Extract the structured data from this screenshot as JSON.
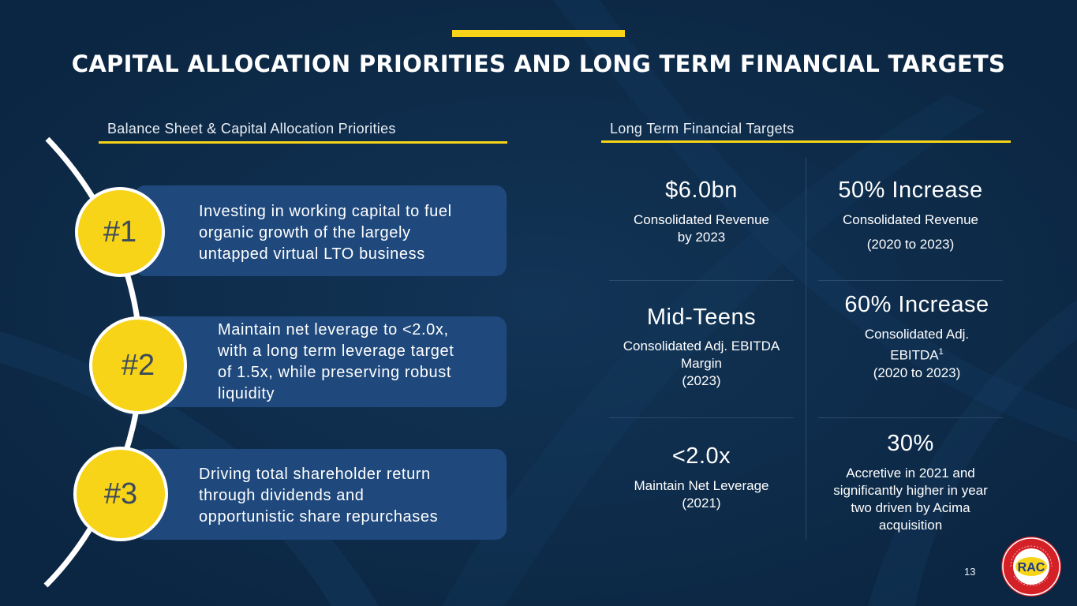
{
  "title": "CAPITAL ALLOCATION PRIORITIES AND LONG TERM FINANCIAL TARGETS",
  "left_section": {
    "label": "Balance Sheet & Capital Allocation Priorities",
    "priorities": [
      {
        "number": "#1",
        "lines": [
          "Investing in working capital to fuel",
          "organic growth of the largely",
          "untapped virtual LTO business"
        ]
      },
      {
        "number": "#2",
        "lines": [
          "Maintain net leverage to <2.0x,",
          "with a long term leverage target",
          "of 1.5x, while preserving robust",
          "liquidity"
        ]
      },
      {
        "number": "#3",
        "lines": [
          "Driving total shareholder return",
          "through dividends and",
          "opportunistic share repurchases"
        ]
      }
    ]
  },
  "right_section": {
    "label": "Long Term Financial Targets",
    "targets": [
      {
        "metric": "$6.0bn",
        "desc": [
          "Consolidated Revenue",
          "by 2023"
        ]
      },
      {
        "metric": "50% Increase",
        "desc": [
          "Consolidated Revenue",
          "(2020 to 2023)"
        ]
      },
      {
        "metric": "Mid-Teens",
        "desc": [
          "Consolidated Adj. EBITDA",
          "Margin",
          "(2023)"
        ]
      },
      {
        "metric": "60% Increase",
        "desc": [
          "Consolidated Adj.",
          "EBITDA",
          "(2020 to 2023)"
        ],
        "superscript": "1"
      },
      {
        "metric": "<2.0x",
        "desc": [
          "Maintain Net Leverage",
          "(2021)"
        ]
      },
      {
        "metric": "30%",
        "desc": [
          "Accretive in 2021 and",
          "significantly higher in year",
          "two driven by Acima",
          "acquisition"
        ]
      }
    ]
  },
  "page_number": "13",
  "logo": {
    "center_text": "RAC",
    "ring_text": "RENT-A-CENTER • ACIMA • GET IT NOW • HOME CHOICE"
  },
  "colors": {
    "background": "#0e2a47",
    "accent_yellow": "#f7d417",
    "pill_blue": "#1f497d",
    "logo_red": "#d42027"
  }
}
